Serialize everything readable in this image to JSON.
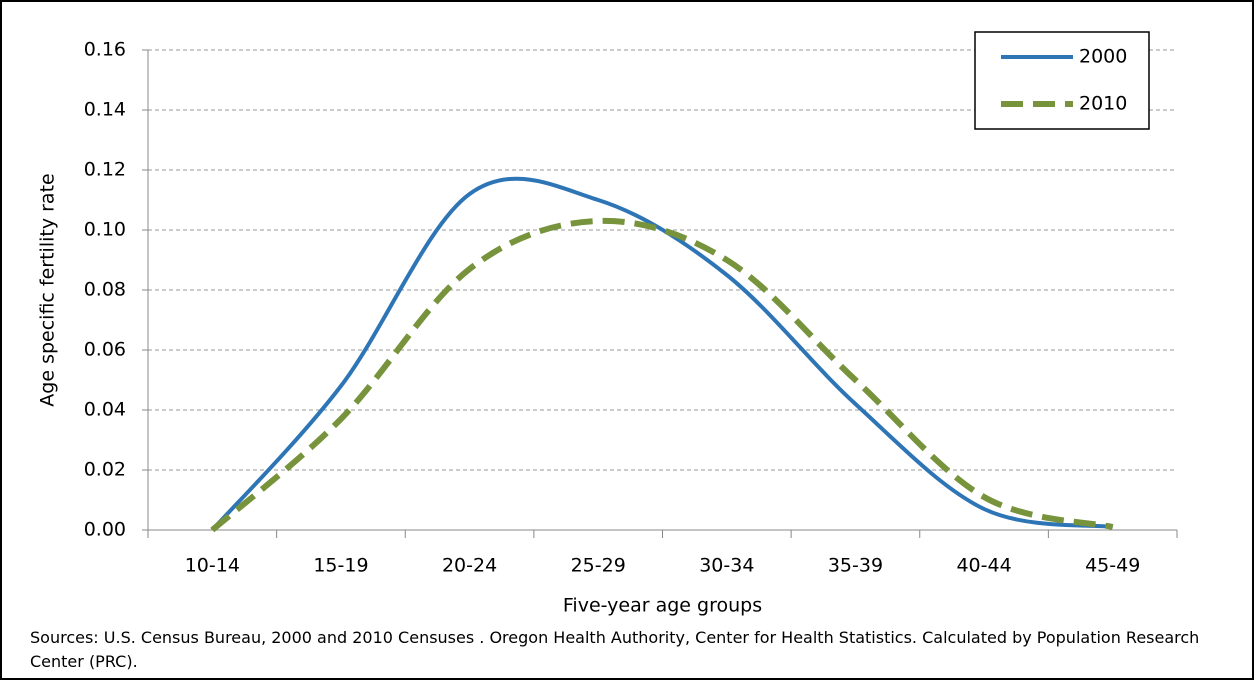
{
  "chart_data": {
    "type": "line",
    "x_label": "Five-year age groups",
    "y_label": "Age specific fertility rate",
    "source": "Sources: U.S. Census Bureau, 2000 and 2010 Censuses . Oregon Health Authority, Center for Health Statistics. Calculated by Population Research Center (PRC).",
    "categories": [
      "10-14",
      "15-19",
      "20-24",
      "25-29",
      "30-34",
      "35-39",
      "40-44",
      "45-49"
    ],
    "series": [
      {
        "name": "2000",
        "color": "#2e75b6",
        "dashed": false,
        "values": [
          0.0,
          0.048,
          0.112,
          0.11,
          0.085,
          0.042,
          0.007,
          0.001
        ]
      },
      {
        "name": "2010",
        "color": "#77933c",
        "dashed": true,
        "values": [
          0.0,
          0.037,
          0.087,
          0.103,
          0.09,
          0.05,
          0.011,
          0.001
        ]
      }
    ],
    "ylim": [
      0,
      0.16
    ],
    "yticks": [
      {
        "value": 0,
        "label": "0.00"
      },
      {
        "value": 0.02,
        "label": "0.02"
      },
      {
        "value": 0.04,
        "label": "0.04"
      },
      {
        "value": 0.06,
        "label": "0.06"
      },
      {
        "value": 0.08,
        "label": "0.08"
      },
      {
        "value": 0.1,
        "label": "0.10"
      },
      {
        "value": 0.12,
        "label": "0.12"
      },
      {
        "value": 0.14,
        "label": "0.14"
      },
      {
        "value": 0.16,
        "label": "0.16"
      }
    ],
    "grid": true,
    "legend": "top-right"
  }
}
